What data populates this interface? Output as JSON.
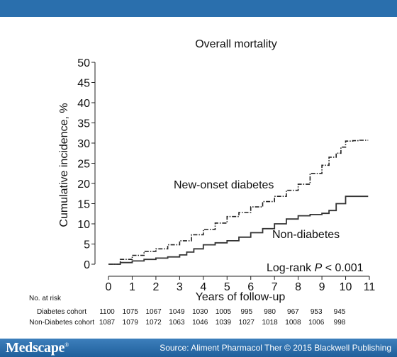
{
  "footer": {
    "brand": "Medscape",
    "brand_mark": "®",
    "source": "Source: Aliment Pharmacol Ther © 2015 Blackwell Publishing"
  },
  "chart_data": {
    "type": "line",
    "title": "Overall mortality",
    "xlabel": "Years of follow-up",
    "ylabel": "Cumulative incidence, %",
    "xlim": [
      0,
      11
    ],
    "ylim": [
      0,
      50
    ],
    "x_ticks": [
      0,
      1,
      2,
      3,
      4,
      5,
      6,
      7,
      8,
      9,
      10,
      11
    ],
    "y_ticks": [
      0,
      5,
      10,
      15,
      20,
      25,
      30,
      35,
      40,
      45,
      50
    ],
    "grid": false,
    "series": [
      {
        "name": "New-onset diabetes",
        "style": "dash-dot",
        "color": "#222222",
        "x": [
          0,
          0.5,
          1,
          1.5,
          2,
          2.5,
          3,
          3.5,
          4,
          4.5,
          5,
          5.5,
          6,
          6.5,
          7,
          7.5,
          8,
          8.5,
          9,
          9.3,
          9.6,
          9.8,
          10,
          10.3,
          10.6,
          10.95
        ],
        "y": [
          0,
          1.2,
          2.2,
          3.2,
          3.8,
          4.8,
          5.8,
          7.3,
          8.6,
          10.2,
          11.8,
          12.8,
          14.2,
          15.5,
          16.8,
          18.3,
          19.8,
          22.5,
          24.5,
          26.5,
          27.5,
          29.0,
          30.5,
          30.6,
          30.7,
          30.7
        ]
      },
      {
        "name": "Non-diabetes",
        "style": "solid",
        "color": "#333333",
        "x": [
          0,
          0.5,
          1,
          1.5,
          2,
          2.5,
          3,
          3.3,
          3.6,
          4,
          4.5,
          5,
          5.5,
          6,
          6.5,
          7,
          7.5,
          8,
          8.5,
          9,
          9.3,
          9.6,
          10,
          10.95
        ],
        "y": [
          0,
          0.4,
          0.8,
          1.2,
          1.5,
          1.8,
          2.3,
          3.0,
          3.8,
          4.8,
          5.3,
          5.8,
          6.7,
          7.8,
          8.8,
          10.0,
          11.2,
          12.0,
          12.3,
          12.6,
          13.3,
          15.0,
          16.8,
          16.8
        ]
      }
    ],
    "series_labels": [
      {
        "series": "New-onset diabetes",
        "text": "New-onset diabetes"
      },
      {
        "series": "Non-diabetes",
        "text": "Non-diabetes"
      }
    ],
    "annotation": {
      "prefix": "Log-rank ",
      "p": "P",
      "suffix": " < 0.001"
    },
    "risk_table": {
      "header": "No. at risk",
      "rows": [
        {
          "label": "Diabetes cohort",
          "values": [
            1100,
            1075,
            1067,
            1049,
            1030,
            1005,
            995,
            980,
            967,
            953,
            945
          ]
        },
        {
          "label": "Non-Diabetes cohort",
          "values": [
            1087,
            1079,
            1072,
            1063,
            1046,
            1039,
            1027,
            1018,
            1008,
            1006,
            998
          ]
        }
      ]
    }
  }
}
